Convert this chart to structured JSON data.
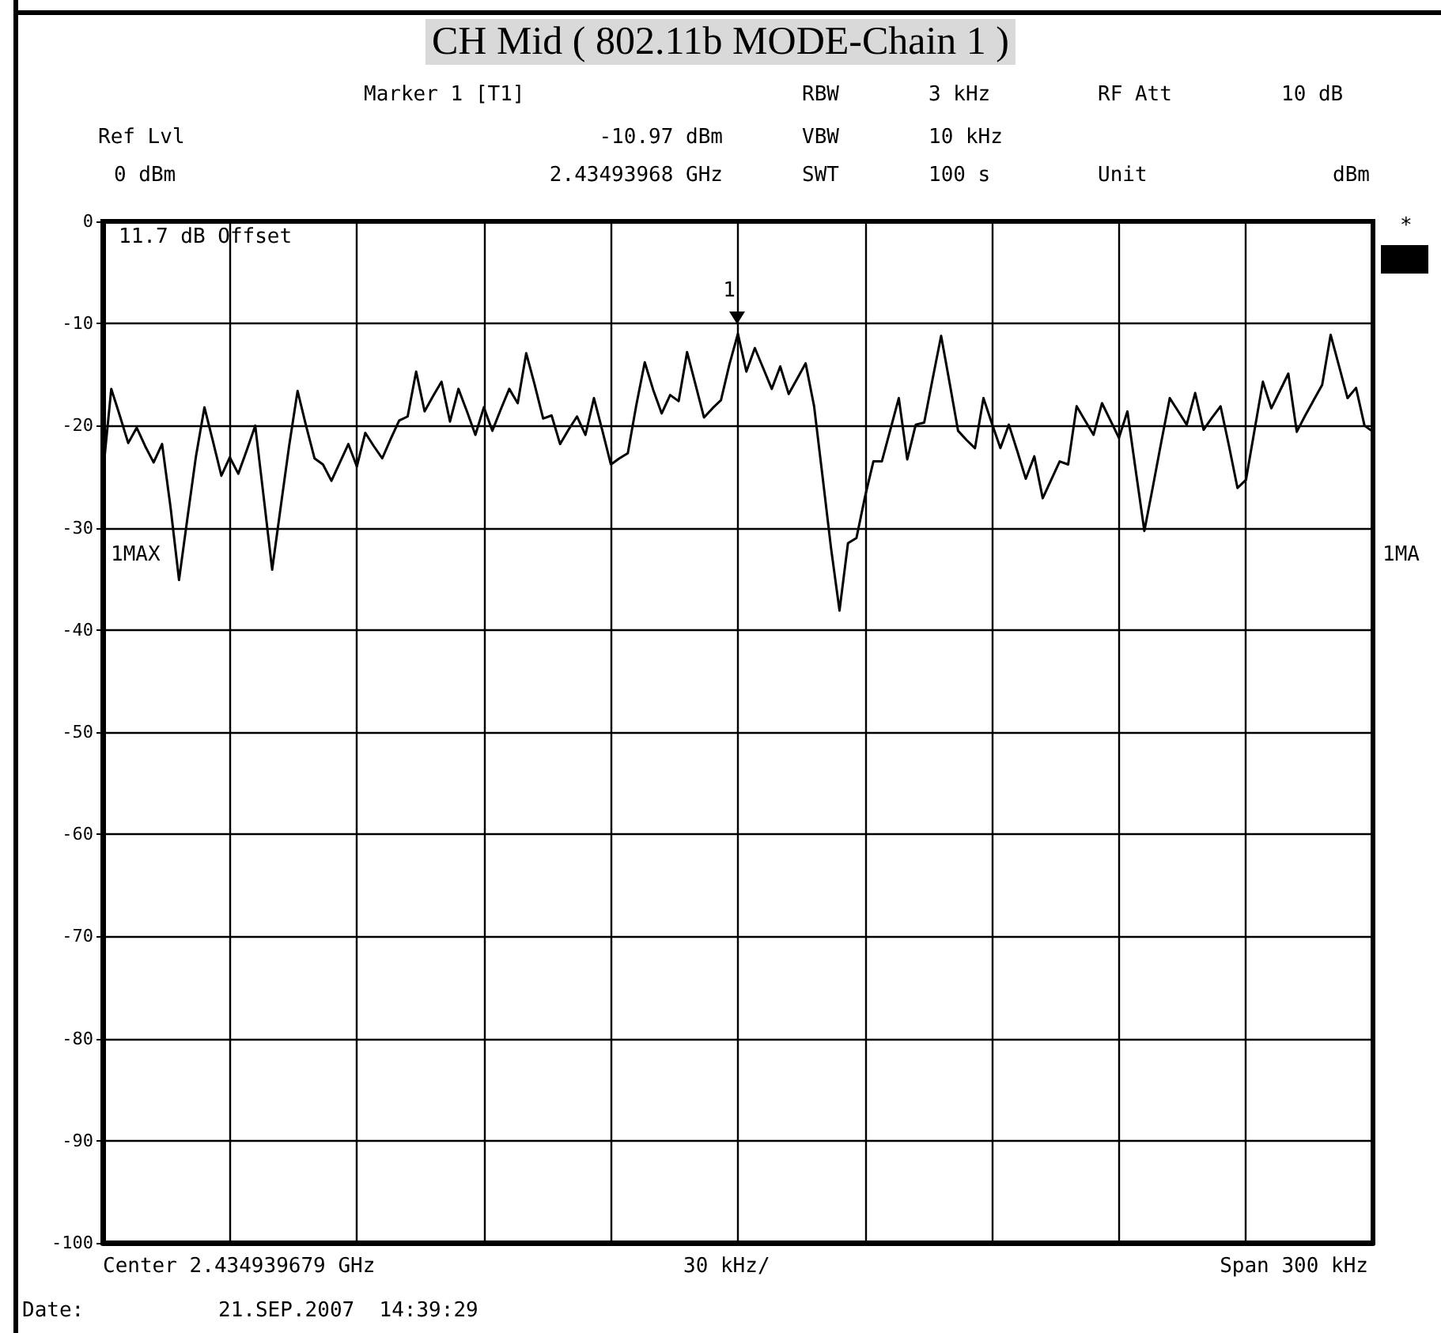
{
  "chart_data": {
    "type": "line",
    "title": "CH Mid ( 802.11b MODE-Chain 1 )",
    "annotations": [
      "Marker 1 [T1]",
      "RBW",
      "3 kHz",
      "RF Att",
      "10 dB",
      "Ref Lvl",
      "-10.97 dBm",
      "VBW",
      "10 kHz",
      "0 dBm",
      "2.43493968 GHz",
      "SWT",
      "100 s",
      "Unit",
      "dBm",
      "11.7 dB Offset",
      "1MAX",
      "1MA",
      "*",
      "Center 2.434939679 GHz",
      "30 kHz/",
      "Span 300 kHz",
      "Date:",
      "21.SEP.2007  14:39:29",
      "1"
    ],
    "categories": [
      null,
      null,
      null,
      null,
      null,
      null,
      null,
      null,
      null,
      null,
      null,
      null,
      null,
      null,
      null,
      null,
      null,
      null,
      null,
      null,
      null,
      null,
      null,
      null,
      null,
      null,
      null,
      null,
      null,
      null,
      null,
      null,
      null,
      null,
      null,
      null,
      null,
      null,
      null,
      null,
      null,
      null,
      null,
      null,
      null,
      null,
      null,
      null,
      null,
      null,
      null,
      null,
      null,
      null,
      null,
      null,
      null,
      null,
      null,
      null,
      null,
      null,
      null,
      null,
      null,
      null,
      null,
      null,
      null,
      null,
      null,
      null,
      null,
      null,
      null,
      null,
      null,
      null,
      null,
      null,
      null,
      null,
      null,
      null,
      null,
      null,
      null,
      null,
      null,
      null,
      null,
      null,
      null,
      null,
      null,
      null,
      null,
      null,
      null,
      null,
      null,
      null,
      null,
      null,
      null,
      null,
      null,
      null,
      null,
      null,
      null,
      null,
      null,
      null,
      null,
      null,
      null,
      null,
      null,
      null,
      null,
      null,
      null,
      null,
      null,
      null,
      null,
      null,
      null,
      null,
      null,
      null,
      null,
      null,
      null,
      null,
      null,
      null,
      null,
      null,
      null,
      null,
      null,
      null,
      null,
      null,
      null,
      null,
      null,
      null,
      null
    ],
    "series": [
      {
        "color": "#000000",
        "values": [
          -24.8,
          -16.4,
          -19,
          -21.7,
          -20.2,
          -22,
          -23.6,
          -21.8,
          -28,
          -35.1,
          -29,
          -23,
          -18.2,
          -21.5,
          -24.9,
          -23.1,
          -24.7,
          -22.4,
          -20,
          -27,
          -34.1,
          -28,
          -22,
          -16.6,
          -20,
          -23.2,
          -23.8,
          -25.4,
          -23.6,
          -21.8,
          -24,
          -20.7,
          -22,
          -23.2,
          -21.3,
          -19.5,
          -19.1,
          -14.7,
          -18.6,
          -17.1,
          -15.7,
          -19.6,
          -16.4,
          -18.6,
          -20.9,
          -18.2,
          -20.5,
          -18.4,
          -16.4,
          -17.8,
          -12.9,
          -16,
          -19.3,
          -19,
          -21.8,
          -20.4,
          -19.1,
          -20.9,
          -17.3,
          -20.5,
          -23.8,
          -23.2,
          -22.7,
          -18,
          -13.8,
          -16.5,
          -18.8,
          -17,
          -17.6,
          -12.8,
          -16,
          -19.2,
          -18.3,
          -17.5,
          -14,
          -11,
          -14.7,
          -12.4,
          -14.4,
          -16.4,
          -14.2,
          -16.9,
          -15.4,
          -13.9,
          -18.1,
          -25,
          -32,
          -38.1,
          -31.5,
          -31,
          -27,
          -23.5,
          -23.5,
          -20.4,
          -17.3,
          -23.3,
          -19.9,
          -19.7,
          -15.4,
          -11.2,
          -15.8,
          -20.5,
          -21.4,
          -22.2,
          -17.3,
          -19.8,
          -22.2,
          -19.9,
          -22.5,
          -25.2,
          -23,
          -27.1,
          -25.3,
          -23.5,
          -23.8,
          -18.1,
          -19.5,
          -20.9,
          -17.8,
          -19.5,
          -21.2,
          -18.6,
          -24.5,
          -30.3,
          -26,
          -21.6,
          -17.3,
          -18.6,
          -19.9,
          -16.8,
          -20.4,
          -19.2,
          -18.1,
          -22,
          -26.1,
          -25.3,
          -20.5,
          -15.7,
          -18.3,
          -16.6,
          -14.9,
          -20.6,
          -19,
          -17.5,
          -16,
          -11.1,
          -14.2,
          -17.3,
          -16.3,
          -20,
          -20.6
        ]
      }
    ],
    "ylim": [
      -100,
      0
    ],
    "yticks": [
      -100,
      -90,
      -80,
      -70,
      -60,
      -50,
      -40,
      -30,
      -20,
      -10,
      0
    ],
    "grid": true,
    "marker": "none",
    "line_style": "solid"
  }
}
